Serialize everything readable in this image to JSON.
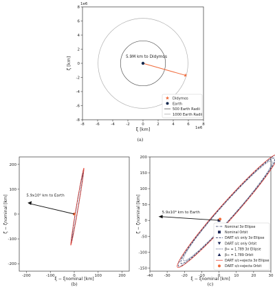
{
  "chart_data": [
    {
      "id": "a",
      "type": "scatter",
      "caption": "(a)",
      "xlabel": "ξ [km]",
      "ylabel": "ζ [km]",
      "x_multiplier": "1e6",
      "y_multiplier": "1e6",
      "xlim": [
        -8,
        8
      ],
      "ylim": [
        -8,
        8
      ],
      "xticks": [
        -8,
        -6,
        -4,
        -2,
        0,
        2,
        4,
        6,
        8
      ],
      "yticks": [
        -8,
        -6,
        -4,
        -2,
        0,
        2,
        4,
        6,
        8
      ],
      "annotation": "5.9M km to Didymos",
      "earth": {
        "x": 0,
        "y": 0
      },
      "didymos": {
        "x": 5.6,
        "y": -1.7
      },
      "earth_radii_500": 3.19,
      "earth_radii_1000": 6.38,
      "legend_location": "lower-right",
      "legend": [
        {
          "label": "Didymos",
          "marker": "star",
          "color": "#f06a3a"
        },
        {
          "label": "Earth",
          "marker": "circle",
          "color": "#152a4f"
        },
        {
          "label": "500 Earth Radii",
          "marker": "line",
          "color": "#555555"
        },
        {
          "label": "1000 Earth Radii",
          "marker": "line",
          "color": "#aaaaaa"
        }
      ]
    },
    {
      "id": "b",
      "type": "line",
      "caption": "(b)",
      "xlabel": "ξ − ξnominal [km]",
      "ylabel": "ζ − ζnominal [km]",
      "xlim": [
        -230,
        230
      ],
      "ylim": [
        -230,
        230
      ],
      "xticks": [
        -200,
        -100,
        0,
        100,
        200
      ],
      "yticks": [
        -200,
        -100,
        0,
        100,
        200
      ],
      "annotation": "5.9x10⁶ km to Earth",
      "ellipse_angle_deg": 80,
      "ellipse_semi_major": 150,
      "ellipse_semi_minor": 4,
      "ellipse_center": [
        13,
        30
      ]
    },
    {
      "id": "c",
      "type": "line",
      "caption": "(c)",
      "xlabel": "ξ − ξnominal [km]",
      "ylabel": "ζ − ζnominal [km]",
      "xlim": [
        -40,
        30
      ],
      "ylim": [
        -160,
        200
      ],
      "xticks": [
        -40,
        -30,
        -20,
        -10,
        0,
        10,
        20,
        30
      ],
      "yticks": [
        -150,
        -100,
        -50,
        0,
        50,
        100,
        150,
        200
      ],
      "annotation": "5.9x10⁶ km to Earth",
      "ellipse_center": [
        5,
        30
      ],
      "ellipse_semi_major": 175,
      "ellipse_semi_minor": 6,
      "ellipse_tilt_x_per_y": 0.16,
      "legend_location": "lower-right",
      "legend": [
        {
          "label": "Nominal 3σ Ellipse",
          "style": "dashdot",
          "color": "#1f2a5a"
        },
        {
          "label": "Nominal Orbit",
          "marker": "square",
          "color": "#1f2a5a"
        },
        {
          "label": "DART s/c only 3σ Ellipse",
          "style": "dashed",
          "color": "#1f2a5a"
        },
        {
          "label": "DART s/c only Orbit",
          "marker": "triangle-down",
          "color": "#1f2a5a"
        },
        {
          "label": "β∞ = 1.789 3σ Ellipse",
          "style": "dotted",
          "color": "#1f2a5a"
        },
        {
          "label": "β∞ = 1.789 Orbit",
          "marker": "triangle-up",
          "color": "#1f2a5a"
        },
        {
          "label": "DART s/c+ejecta 3σ Ellipse",
          "style": "solid",
          "color": "#e3463a"
        },
        {
          "label": "DART s/c+ejecta Orbit",
          "marker": "circle",
          "color": "#f06a3a"
        }
      ]
    }
  ]
}
